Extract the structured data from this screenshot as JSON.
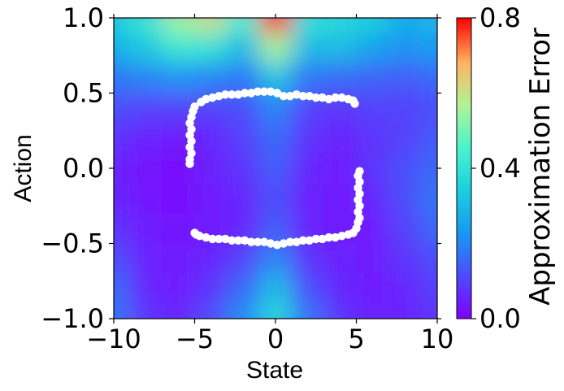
{
  "chart_data": {
    "type": "heatmap",
    "title": "",
    "xlabel": "State",
    "ylabel": "Action",
    "xlim": [
      -10,
      10
    ],
    "ylim": [
      -1.0,
      1.0
    ],
    "x_ticks": [
      -10,
      -5,
      0,
      5,
      10
    ],
    "x_tick_labels": [
      "−10",
      "−5",
      "0",
      "5",
      "10"
    ],
    "y_ticks": [
      1.0,
      0.5,
      0.0,
      -0.5,
      -1.0
    ],
    "y_tick_labels": [
      "1.0",
      "0.5",
      "0.0",
      "−0.5",
      "−1.0"
    ],
    "colorbar": {
      "label": "Approximation Error",
      "range": [
        0.0,
        0.8
      ],
      "ticks": [
        0.0,
        0.4,
        0.8
      ],
      "tick_labels": [
        "0.0",
        "0.4",
        "0.8"
      ],
      "colormap": "rainbow"
    },
    "heatmap_x": [
      -10,
      -8,
      -6,
      -4,
      -2,
      0,
      2,
      4,
      6,
      8,
      10
    ],
    "heatmap_y": [
      1.0,
      0.8,
      0.6,
      0.4,
      0.2,
      0.0,
      -0.2,
      -0.4,
      -0.6,
      -0.8,
      -1.0
    ],
    "heatmap_z": [
      [
        0.35,
        0.42,
        0.55,
        0.6,
        0.45,
        0.78,
        0.4,
        0.38,
        0.35,
        0.28,
        0.3
      ],
      [
        0.28,
        0.33,
        0.42,
        0.4,
        0.3,
        0.55,
        0.3,
        0.3,
        0.25,
        0.22,
        0.24
      ],
      [
        0.18,
        0.2,
        0.22,
        0.2,
        0.18,
        0.32,
        0.18,
        0.16,
        0.15,
        0.14,
        0.16
      ],
      [
        0.12,
        0.1,
        0.1,
        0.1,
        0.12,
        0.2,
        0.1,
        0.08,
        0.1,
        0.1,
        0.12
      ],
      [
        0.08,
        0.05,
        0.04,
        0.06,
        0.1,
        0.16,
        0.08,
        0.05,
        0.08,
        0.1,
        0.14
      ],
      [
        0.05,
        0.03,
        0.02,
        0.05,
        0.08,
        0.14,
        0.06,
        0.04,
        0.08,
        0.12,
        0.16
      ],
      [
        0.06,
        0.03,
        0.02,
        0.04,
        0.06,
        0.12,
        0.05,
        0.04,
        0.06,
        0.12,
        0.18
      ],
      [
        0.08,
        0.04,
        0.03,
        0.04,
        0.06,
        0.14,
        0.05,
        0.04,
        0.04,
        0.1,
        0.16
      ],
      [
        0.12,
        0.05,
        0.04,
        0.06,
        0.1,
        0.2,
        0.08,
        0.05,
        0.04,
        0.08,
        0.12
      ],
      [
        0.16,
        0.06,
        0.04,
        0.08,
        0.16,
        0.3,
        0.12,
        0.06,
        0.04,
        0.06,
        0.1
      ],
      [
        0.18,
        0.08,
        0.06,
        0.12,
        0.22,
        0.38,
        0.18,
        0.08,
        0.05,
        0.05,
        0.08
      ]
    ],
    "points_color": "#ffffff",
    "points": [
      [
        -5.3,
        0.03
      ],
      [
        -5.3,
        0.06
      ],
      [
        -5.2,
        0.1
      ],
      [
        -5.3,
        0.14
      ],
      [
        -5.2,
        0.18
      ],
      [
        -5.3,
        0.22
      ],
      [
        -5.2,
        0.26
      ],
      [
        -5.3,
        0.3
      ],
      [
        -5.2,
        0.34
      ],
      [
        -5.1,
        0.38
      ],
      [
        -5.0,
        0.41
      ],
      [
        -4.6,
        0.44
      ],
      [
        -4.3,
        0.46
      ],
      [
        -3.9,
        0.47
      ],
      [
        -3.5,
        0.48
      ],
      [
        -3.1,
        0.49
      ],
      [
        -2.7,
        0.49
      ],
      [
        -2.3,
        0.49
      ],
      [
        -1.9,
        0.5
      ],
      [
        -1.5,
        0.5
      ],
      [
        -1.1,
        0.51
      ],
      [
        -0.7,
        0.51
      ],
      [
        -0.3,
        0.51
      ],
      [
        0.1,
        0.5
      ],
      [
        0.5,
        0.48
      ],
      [
        0.9,
        0.48
      ],
      [
        1.3,
        0.49
      ],
      [
        1.7,
        0.48
      ],
      [
        2.1,
        0.48
      ],
      [
        2.5,
        0.47
      ],
      [
        2.9,
        0.47
      ],
      [
        3.3,
        0.46
      ],
      [
        3.7,
        0.47
      ],
      [
        4.1,
        0.47
      ],
      [
        4.5,
        0.46
      ],
      [
        4.8,
        0.45
      ],
      [
        4.9,
        0.43
      ],
      [
        5.2,
        -0.02
      ],
      [
        5.1,
        -0.05
      ],
      [
        5.2,
        -0.09
      ],
      [
        5.1,
        -0.13
      ],
      [
        5.2,
        -0.17
      ],
      [
        5.1,
        -0.21
      ],
      [
        5.2,
        -0.25
      ],
      [
        5.1,
        -0.29
      ],
      [
        5.2,
        -0.33
      ],
      [
        5.1,
        -0.36
      ],
      [
        5.0,
        -0.4
      ],
      [
        4.8,
        -0.43
      ],
      [
        4.5,
        -0.44
      ],
      [
        4.1,
        -0.45
      ],
      [
        3.7,
        -0.46
      ],
      [
        3.3,
        -0.46
      ],
      [
        2.9,
        -0.47
      ],
      [
        2.5,
        -0.47
      ],
      [
        2.1,
        -0.48
      ],
      [
        1.7,
        -0.48
      ],
      [
        1.3,
        -0.49
      ],
      [
        0.9,
        -0.49
      ],
      [
        0.5,
        -0.5
      ],
      [
        0.1,
        -0.51
      ],
      [
        -0.3,
        -0.5
      ],
      [
        -0.7,
        -0.49
      ],
      [
        -1.1,
        -0.49
      ],
      [
        -1.5,
        -0.49
      ],
      [
        -1.9,
        -0.48
      ],
      [
        -2.3,
        -0.48
      ],
      [
        -2.7,
        -0.48
      ],
      [
        -3.1,
        -0.47
      ],
      [
        -3.5,
        -0.47
      ],
      [
        -3.9,
        -0.47
      ],
      [
        -4.3,
        -0.46
      ],
      [
        -4.7,
        -0.45
      ],
      [
        -4.9,
        -0.44
      ],
      [
        -5.0,
        -0.43
      ]
    ]
  }
}
